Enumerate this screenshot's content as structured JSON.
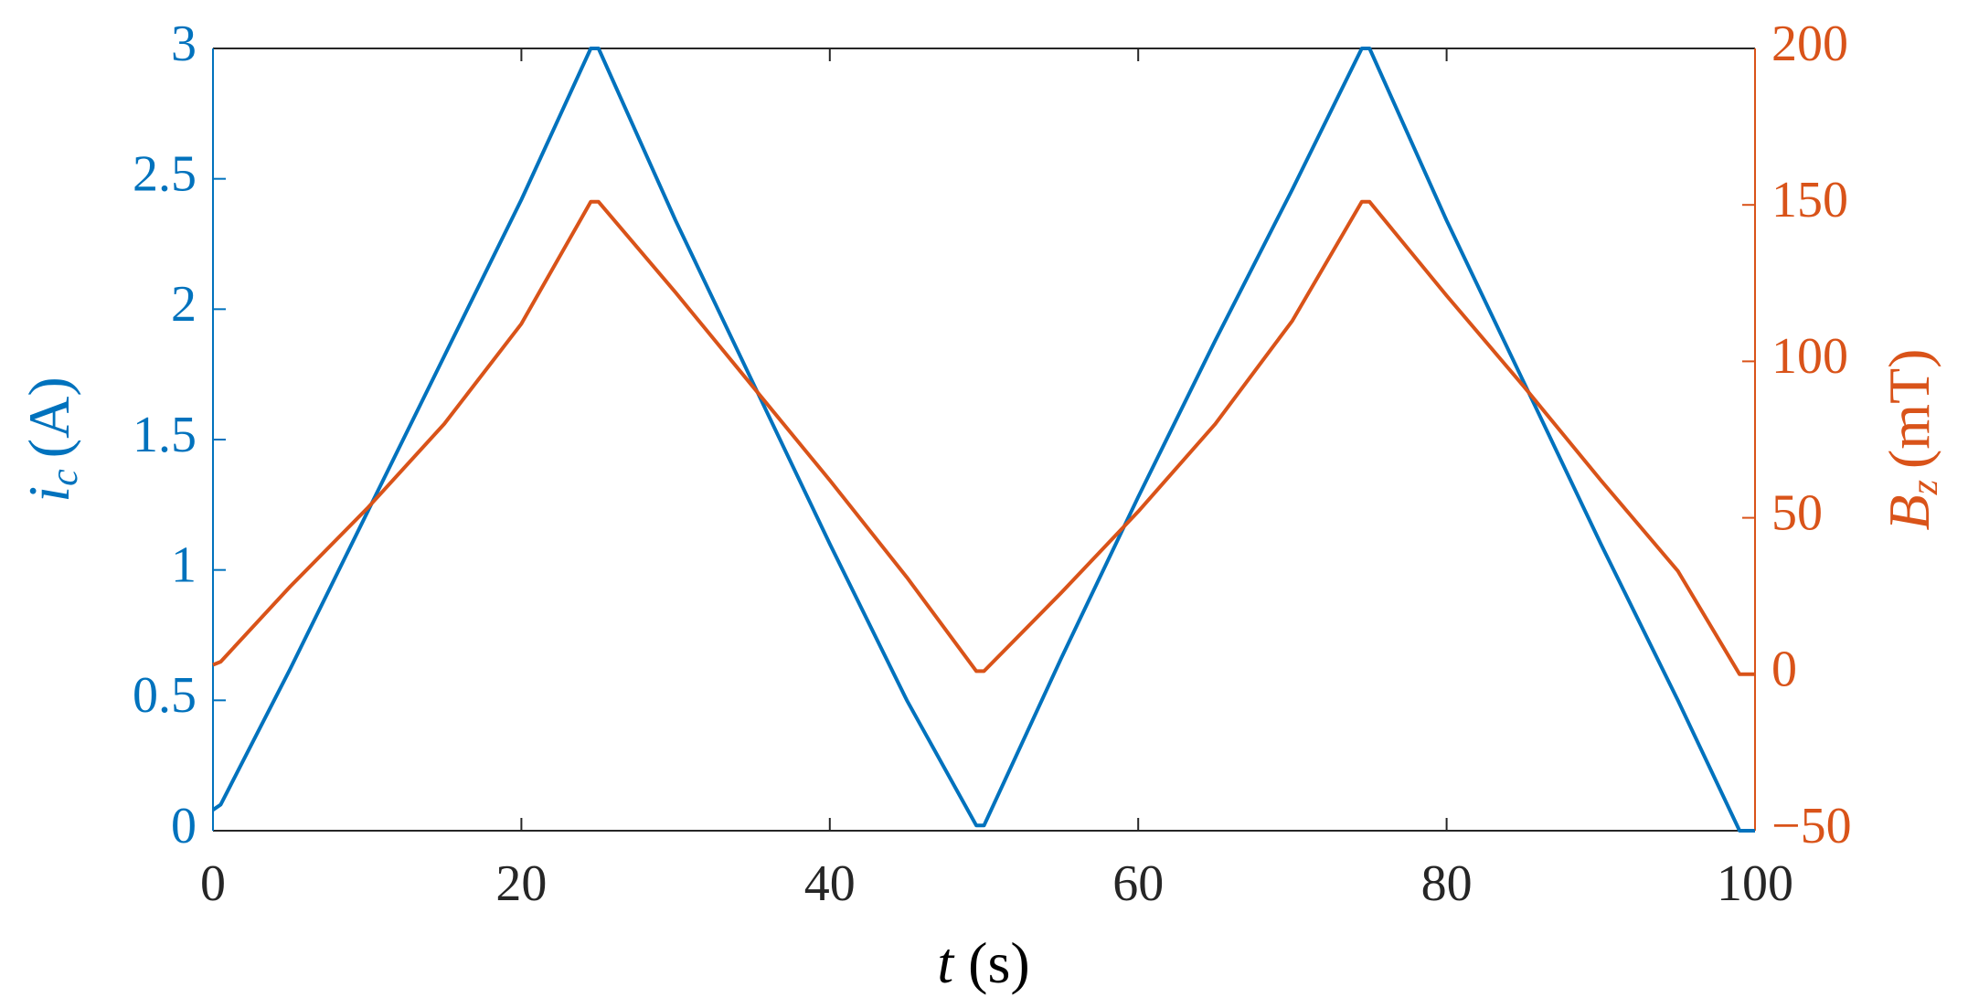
{
  "chart_data": {
    "type": "line",
    "xlabel": {
      "symbol": "t",
      "unit": "(s)"
    },
    "ylabel": {
      "symbol": "i",
      "subscript": "c",
      "unit": "(A)"
    },
    "y2label": {
      "symbol": "B",
      "subscript": "z",
      "unit": "(mT)"
    },
    "x": [
      0,
      0.5,
      5,
      10,
      15,
      20,
      24.5,
      25,
      30,
      35,
      40,
      45,
      49.5,
      50,
      55,
      60,
      65,
      70,
      74.5,
      75,
      80,
      85,
      90,
      95,
      99,
      100
    ],
    "series": [
      {
        "name": "i_c",
        "color": "#0072bd",
        "axis": "y",
        "values": [
          0.08,
          0.1,
          0.62,
          1.22,
          1.82,
          2.42,
          3,
          3,
          2.34,
          1.72,
          1.1,
          0.5,
          0.02,
          0.02,
          0.66,
          1.28,
          1.88,
          2.46,
          3,
          3,
          2.34,
          1.72,
          1.1,
          0.5,
          0,
          0
        ]
      },
      {
        "name": "B_z",
        "color": "#d95319",
        "axis": "y2",
        "values": [
          3,
          4,
          28,
          53,
          80,
          112,
          151,
          151,
          122,
          92,
          62,
          31,
          1,
          1,
          26,
          52,
          80,
          113,
          151,
          151,
          121,
          92,
          62,
          33,
          0,
          0
        ]
      }
    ],
    "xlim": [
      0,
      100
    ],
    "xticks": [
      0,
      20,
      40,
      60,
      80,
      100
    ],
    "ylim": [
      0,
      3
    ],
    "yticks": [
      0,
      0.5,
      1,
      1.5,
      2,
      2.5,
      3
    ],
    "y2lim": [
      -50,
      200
    ],
    "y2ticks": [
      {
        "value": -50,
        "label": "−50"
      },
      0,
      50,
      100,
      150,
      200
    ]
  }
}
